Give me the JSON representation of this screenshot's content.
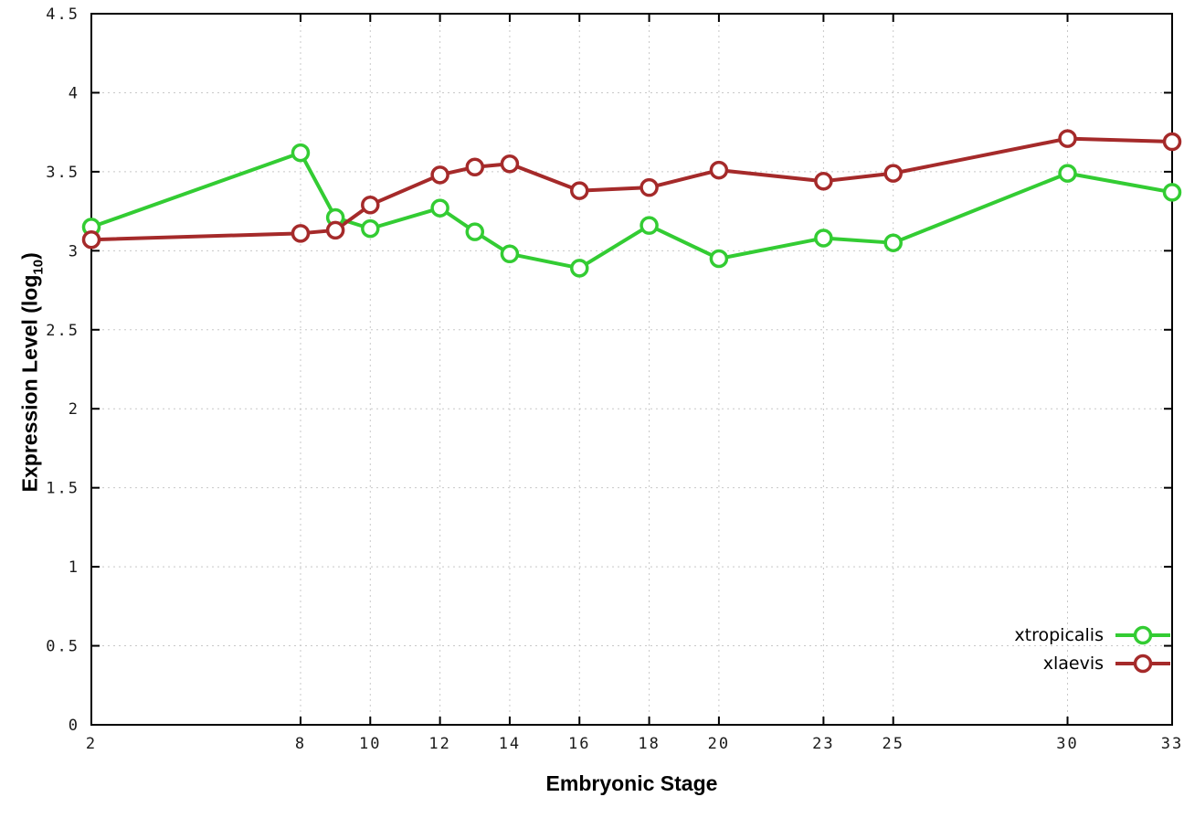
{
  "chart_data": {
    "type": "line",
    "title": "",
    "xlabel": "Embryonic Stage",
    "ylabel": "Expression Level (log10)",
    "ylabel_parts": {
      "prefix": "Expression Level (log",
      "sub": "10",
      "suffix": ")"
    },
    "x": [
      2,
      8,
      9,
      10,
      12,
      13,
      14,
      16,
      18,
      20,
      23,
      25,
      30,
      33
    ],
    "series": [
      {
        "name": "xtropicalis",
        "color": "#33cc33",
        "values": [
          3.15,
          3.62,
          3.21,
          3.14,
          3.27,
          3.12,
          2.98,
          2.89,
          3.16,
          2.95,
          3.08,
          3.05,
          3.49,
          3.37
        ]
      },
      {
        "name": "xlaevis",
        "color": "#a52a2a",
        "values": [
          3.07,
          3.11,
          3.13,
          3.29,
          3.48,
          3.53,
          3.55,
          3.38,
          3.4,
          3.51,
          3.44,
          3.49,
          3.71,
          3.69
        ]
      }
    ],
    "x_ticks": [
      2,
      8,
      10,
      12,
      14,
      16,
      18,
      20,
      23,
      25,
      30,
      33
    ],
    "x_tick_labels": [
      "2",
      "8",
      "10",
      "12",
      "14",
      "16",
      "18",
      "20",
      "23",
      "25",
      "30",
      "33"
    ],
    "y_ticks": [
      0,
      0.5,
      1,
      1.5,
      2,
      2.5,
      3,
      3.5,
      4,
      4.5
    ],
    "y_tick_labels": [
      "0",
      "0.5",
      "1",
      "1.5",
      "2",
      "2.5",
      "3",
      "3.5",
      "4",
      "4.5"
    ],
    "xlim": [
      2,
      33
    ],
    "ylim": [
      0,
      4.5
    ],
    "grid": true,
    "legend_position": "bottom-right",
    "legend_entries": [
      "xtropicalis",
      "xlaevis"
    ],
    "axis_color": "#000000",
    "grid_color": "#c8c8c8",
    "background_color": "#ffffff"
  }
}
